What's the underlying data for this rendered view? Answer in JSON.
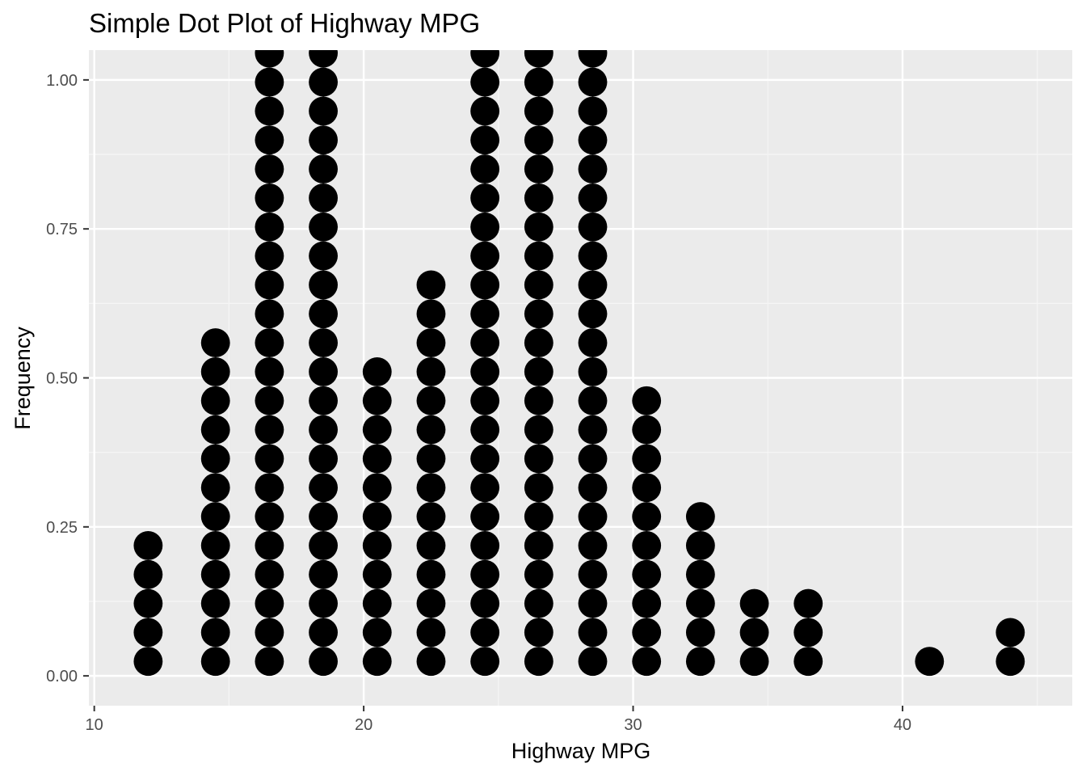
{
  "chart_data": {
    "type": "scatter",
    "subtype": "dotplot",
    "title": "Simple Dot Plot of Highway MPG",
    "xlabel": "Highway MPG",
    "ylabel": "Frequency",
    "xlim": [
      9.8,
      46.3
    ],
    "ylim": [
      -0.05,
      1.05
    ],
    "x_ticks": [
      10,
      20,
      30,
      40
    ],
    "x_tick_labels": [
      "10",
      "20",
      "30",
      "40"
    ],
    "y_ticks": [
      0,
      0.25,
      0.5,
      0.75,
      1.0
    ],
    "y_tick_labels": [
      "0.00",
      "0.25",
      "0.50",
      "0.75",
      "1.00"
    ],
    "dot_spacing": 0.0486,
    "bins": [
      {
        "x": 12.0,
        "count": 5
      },
      {
        "x": 14.5,
        "count": 12
      },
      {
        "x": 16.5,
        "count": 22
      },
      {
        "x": 18.5,
        "count": 22
      },
      {
        "x": 20.5,
        "count": 11
      },
      {
        "x": 22.5,
        "count": 14
      },
      {
        "x": 24.5,
        "count": 22
      },
      {
        "x": 26.5,
        "count": 22
      },
      {
        "x": 28.5,
        "count": 22
      },
      {
        "x": 30.5,
        "count": 10
      },
      {
        "x": 32.5,
        "count": 6
      },
      {
        "x": 34.5,
        "count": 3
      },
      {
        "x": 36.5,
        "count": 3
      },
      {
        "x": 41.0,
        "count": 1
      },
      {
        "x": 44.0,
        "count": 2
      }
    ],
    "grid": true,
    "legend": "none",
    "colors": {
      "panel_background": "#ebebeb",
      "grid_major": "#ffffff",
      "grid_minor": "#f5f5f5",
      "dot_fill": "#000000",
      "tick_text": "#4d4d4d",
      "tick_mark": "#333333"
    }
  }
}
